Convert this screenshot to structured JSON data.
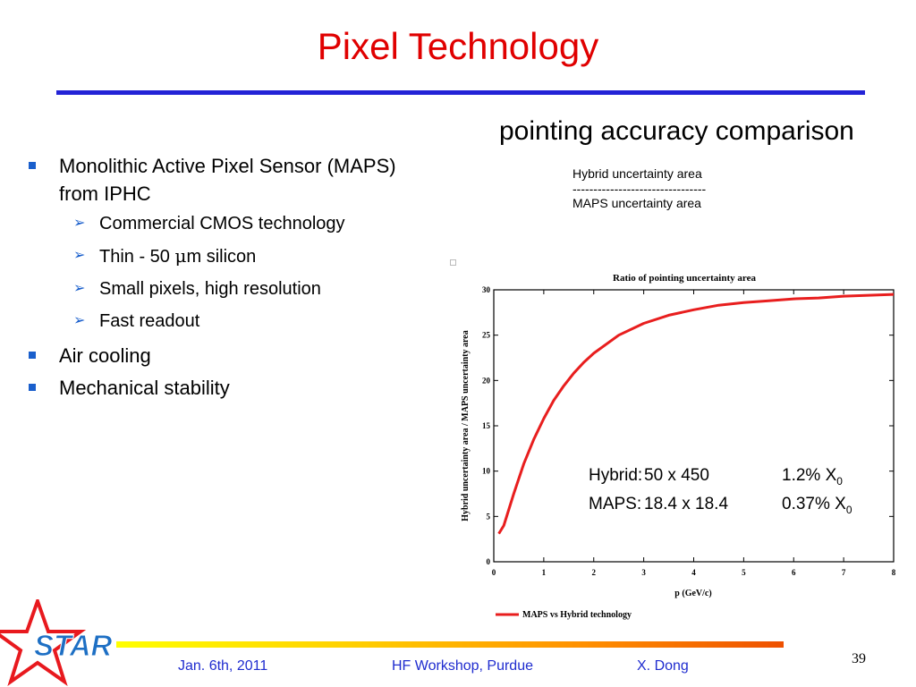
{
  "slide": {
    "title": "Pixel Technology",
    "subtitle": "pointing accuracy comparison",
    "ratio_numerator": "Hybrid uncertainty area",
    "ratio_divider": "--------------------------------",
    "ratio_denominator": "MAPS uncertainty area",
    "page_number": "39"
  },
  "bullets": [
    {
      "text": "Monolithic Active Pixel Sensor (MAPS) from IPHC"
    },
    {
      "text": "Commercial CMOS technology"
    },
    {
      "text_before": "Thin - 50 ",
      "mu": "μ",
      "text_after": "m silicon"
    },
    {
      "text": "Small pixels, high resolution"
    },
    {
      "text": "Fast readout"
    },
    {
      "text": "Air cooling"
    },
    {
      "text": "Mechanical stability"
    }
  ],
  "specs": {
    "hybrid_label": "Hybrid:",
    "hybrid_size": "50 x 450",
    "hybrid_x0": "1.2% X",
    "maps_label": "MAPS:",
    "maps_size": "18.4 x 18.4",
    "maps_x0": "0.37% X",
    "x0_sub": "0"
  },
  "footer": {
    "date": "Jan. 6th, 2011",
    "event": "HF Workshop, Purdue",
    "author": "X. Dong"
  },
  "logo": {
    "text": "STAR",
    "star_color": "#e8191e",
    "text_color": "#1d6fc4"
  },
  "colors": {
    "title": "#e00000",
    "rule": "#2323d6",
    "bullet": "#1a5fcc",
    "footer_text": "#1f2ccf",
    "curve": "#e81e1e"
  },
  "chart_data": {
    "type": "line",
    "title": "Ratio of pointing uncertainty area",
    "xlabel": "p (GeV/c)",
    "ylabel": "Hybrid uncertainty area / MAPS uncertainty area",
    "xlim": [
      0,
      8
    ],
    "ylim": [
      0,
      30
    ],
    "xticks": [
      "0",
      "1",
      "2",
      "3",
      "4",
      "5",
      "6",
      "7",
      "8"
    ],
    "yticks": [
      "0",
      "5",
      "10",
      "15",
      "20",
      "25",
      "30"
    ],
    "legend_position": "bottom-left",
    "series": [
      {
        "name": "MAPS vs Hybrid technology",
        "color": "#e81e1e",
        "x": [
          0.1,
          0.2,
          0.4,
          0.6,
          0.8,
          1.0,
          1.2,
          1.4,
          1.6,
          1.8,
          2.0,
          2.5,
          3.0,
          3.5,
          4.0,
          4.5,
          5.0,
          5.5,
          6.0,
          6.5,
          7.0,
          7.5,
          8.0
        ],
        "y": [
          3.1,
          4.0,
          7.5,
          10.8,
          13.5,
          15.8,
          17.8,
          19.4,
          20.8,
          22.0,
          23.0,
          25.0,
          26.3,
          27.2,
          27.8,
          28.3,
          28.6,
          28.8,
          29.0,
          29.1,
          29.3,
          29.4,
          29.5
        ]
      }
    ]
  }
}
